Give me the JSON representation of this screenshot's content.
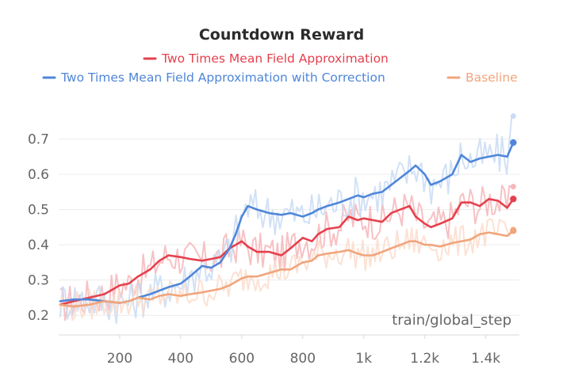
{
  "chart_data": {
    "type": "line",
    "title": "Countdown Reward",
    "xlabel": "train/global_step",
    "ylabel": "",
    "xlim": [
      0,
      1510
    ],
    "ylim": [
      0.16,
      0.78
    ],
    "x_ticks": [
      200,
      400,
      600,
      800,
      1000,
      1200,
      1400
    ],
    "x_tick_labels": [
      "200",
      "400",
      "600",
      "800",
      "1k",
      "1.2k",
      "1.4k"
    ],
    "y_ticks": [
      0.2,
      0.3,
      0.4,
      0.5,
      0.6,
      0.7
    ],
    "y_tick_labels": [
      "0.2",
      "0.3",
      "0.4",
      "0.5",
      "0.6",
      "0.7"
    ],
    "grid": true,
    "legend_position": "top",
    "series": [
      {
        "name": "Two Times Mean Field Approximation",
        "color": "#e5404d",
        "raw_color": "#f6b6ba",
        "points": [
          [
            5,
            0.23
          ],
          [
            50,
            0.24
          ],
          [
            100,
            0.25
          ],
          [
            150,
            0.26
          ],
          [
            200,
            0.285
          ],
          [
            230,
            0.29
          ],
          [
            260,
            0.31
          ],
          [
            300,
            0.33
          ],
          [
            330,
            0.355
          ],
          [
            360,
            0.37
          ],
          [
            400,
            0.365
          ],
          [
            430,
            0.36
          ],
          [
            470,
            0.355
          ],
          [
            500,
            0.36
          ],
          [
            530,
            0.365
          ],
          [
            560,
            0.39
          ],
          [
            600,
            0.41
          ],
          [
            620,
            0.395
          ],
          [
            650,
            0.38
          ],
          [
            690,
            0.38
          ],
          [
            730,
            0.37
          ],
          [
            760,
            0.39
          ],
          [
            800,
            0.42
          ],
          [
            830,
            0.41
          ],
          [
            850,
            0.43
          ],
          [
            880,
            0.445
          ],
          [
            920,
            0.45
          ],
          [
            950,
            0.48
          ],
          [
            980,
            0.47
          ],
          [
            1000,
            0.475
          ],
          [
            1030,
            0.47
          ],
          [
            1060,
            0.465
          ],
          [
            1090,
            0.49
          ],
          [
            1120,
            0.5
          ],
          [
            1150,
            0.51
          ],
          [
            1170,
            0.48
          ],
          [
            1200,
            0.46
          ],
          [
            1220,
            0.45
          ],
          [
            1250,
            0.46
          ],
          [
            1290,
            0.475
          ],
          [
            1320,
            0.52
          ],
          [
            1350,
            0.52
          ],
          [
            1380,
            0.51
          ],
          [
            1410,
            0.53
          ],
          [
            1440,
            0.525
          ],
          [
            1470,
            0.505
          ],
          [
            1490,
            0.53
          ]
        ]
      },
      {
        "name": "Two Times Mean Field Approximation with Correction",
        "color": "#4f86d9",
        "raw_color": "#c9dcf5",
        "points": [
          [
            5,
            0.24
          ],
          [
            50,
            0.245
          ],
          [
            100,
            0.245
          ],
          [
            150,
            0.24
          ],
          [
            200,
            0.235
          ],
          [
            230,
            0.24
          ],
          [
            260,
            0.25
          ],
          [
            300,
            0.26
          ],
          [
            330,
            0.27
          ],
          [
            360,
            0.28
          ],
          [
            400,
            0.29
          ],
          [
            430,
            0.31
          ],
          [
            470,
            0.34
          ],
          [
            500,
            0.335
          ],
          [
            530,
            0.35
          ],
          [
            560,
            0.39
          ],
          [
            580,
            0.43
          ],
          [
            600,
            0.48
          ],
          [
            620,
            0.51
          ],
          [
            650,
            0.5
          ],
          [
            690,
            0.49
          ],
          [
            730,
            0.485
          ],
          [
            760,
            0.49
          ],
          [
            800,
            0.48
          ],
          [
            830,
            0.49
          ],
          [
            850,
            0.5
          ],
          [
            880,
            0.51
          ],
          [
            920,
            0.52
          ],
          [
            950,
            0.53
          ],
          [
            980,
            0.54
          ],
          [
            1000,
            0.535
          ],
          [
            1030,
            0.545
          ],
          [
            1060,
            0.55
          ],
          [
            1090,
            0.57
          ],
          [
            1120,
            0.59
          ],
          [
            1150,
            0.61
          ],
          [
            1170,
            0.625
          ],
          [
            1200,
            0.6
          ],
          [
            1220,
            0.57
          ],
          [
            1250,
            0.58
          ],
          [
            1290,
            0.6
          ],
          [
            1320,
            0.655
          ],
          [
            1350,
            0.635
          ],
          [
            1380,
            0.645
          ],
          [
            1410,
            0.65
          ],
          [
            1440,
            0.655
          ],
          [
            1470,
            0.65
          ],
          [
            1490,
            0.69
          ]
        ]
      },
      {
        "name": "Baseline",
        "color": "#f0a57c",
        "raw_color": "#fbdccb",
        "points": [
          [
            5,
            0.23
          ],
          [
            50,
            0.225
          ],
          [
            100,
            0.23
          ],
          [
            150,
            0.24
          ],
          [
            200,
            0.235
          ],
          [
            230,
            0.24
          ],
          [
            260,
            0.25
          ],
          [
            300,
            0.245
          ],
          [
            330,
            0.255
          ],
          [
            360,
            0.26
          ],
          [
            400,
            0.255
          ],
          [
            430,
            0.26
          ],
          [
            470,
            0.265
          ],
          [
            500,
            0.27
          ],
          [
            530,
            0.275
          ],
          [
            560,
            0.285
          ],
          [
            600,
            0.305
          ],
          [
            620,
            0.31
          ],
          [
            650,
            0.31
          ],
          [
            690,
            0.32
          ],
          [
            730,
            0.33
          ],
          [
            760,
            0.33
          ],
          [
            800,
            0.35
          ],
          [
            830,
            0.355
          ],
          [
            850,
            0.37
          ],
          [
            880,
            0.375
          ],
          [
            920,
            0.38
          ],
          [
            950,
            0.385
          ],
          [
            980,
            0.375
          ],
          [
            1000,
            0.37
          ],
          [
            1030,
            0.37
          ],
          [
            1060,
            0.38
          ],
          [
            1090,
            0.39
          ],
          [
            1120,
            0.4
          ],
          [
            1150,
            0.41
          ],
          [
            1170,
            0.41
          ],
          [
            1200,
            0.4
          ],
          [
            1220,
            0.4
          ],
          [
            1250,
            0.395
          ],
          [
            1290,
            0.405
          ],
          [
            1320,
            0.41
          ],
          [
            1350,
            0.415
          ],
          [
            1380,
            0.43
          ],
          [
            1410,
            0.435
          ],
          [
            1440,
            0.43
          ],
          [
            1470,
            0.425
          ],
          [
            1490,
            0.44
          ]
        ]
      }
    ],
    "final_points": [
      {
        "series": "Two Times Mean Field Approximation",
        "raw": 0.565,
        "smoothed": 0.53
      },
      {
        "series": "Two Times Mean Field Approximation with Correction",
        "raw": 0.765,
        "smoothed": 0.69
      },
      {
        "series": "Baseline",
        "raw": 0.445,
        "smoothed": 0.44
      }
    ]
  }
}
